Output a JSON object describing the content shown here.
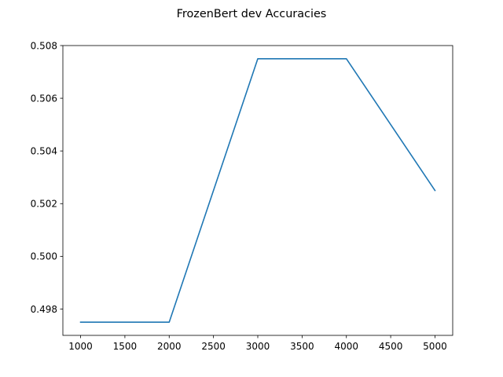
{
  "chart_data": {
    "type": "line",
    "title": "FrozenBert dev Accuracies",
    "xlabel": "",
    "ylabel": "",
    "x": [
      1000,
      2000,
      3000,
      4000,
      5000
    ],
    "series": [
      {
        "values": [
          0.4975,
          0.4975,
          0.5075,
          0.5075,
          0.5025
        ],
        "color": "#1f77b4"
      }
    ],
    "xlim": [
      800,
      5200
    ],
    "ylim": [
      0.497,
      0.508
    ],
    "xticks": [
      1000,
      1500,
      2000,
      2500,
      3000,
      3500,
      4000,
      4500,
      5000
    ],
    "xtick_labels": [
      "1000",
      "1500",
      "2000",
      "2500",
      "3000",
      "3500",
      "4000",
      "4500",
      "5000"
    ],
    "yticks": [
      0.498,
      0.5,
      0.502,
      0.504,
      0.506,
      0.508
    ],
    "ytick_labels": [
      "0.498",
      "0.500",
      "0.502",
      "0.504",
      "0.506",
      "0.508"
    ],
    "grid": false,
    "legend": "none"
  }
}
